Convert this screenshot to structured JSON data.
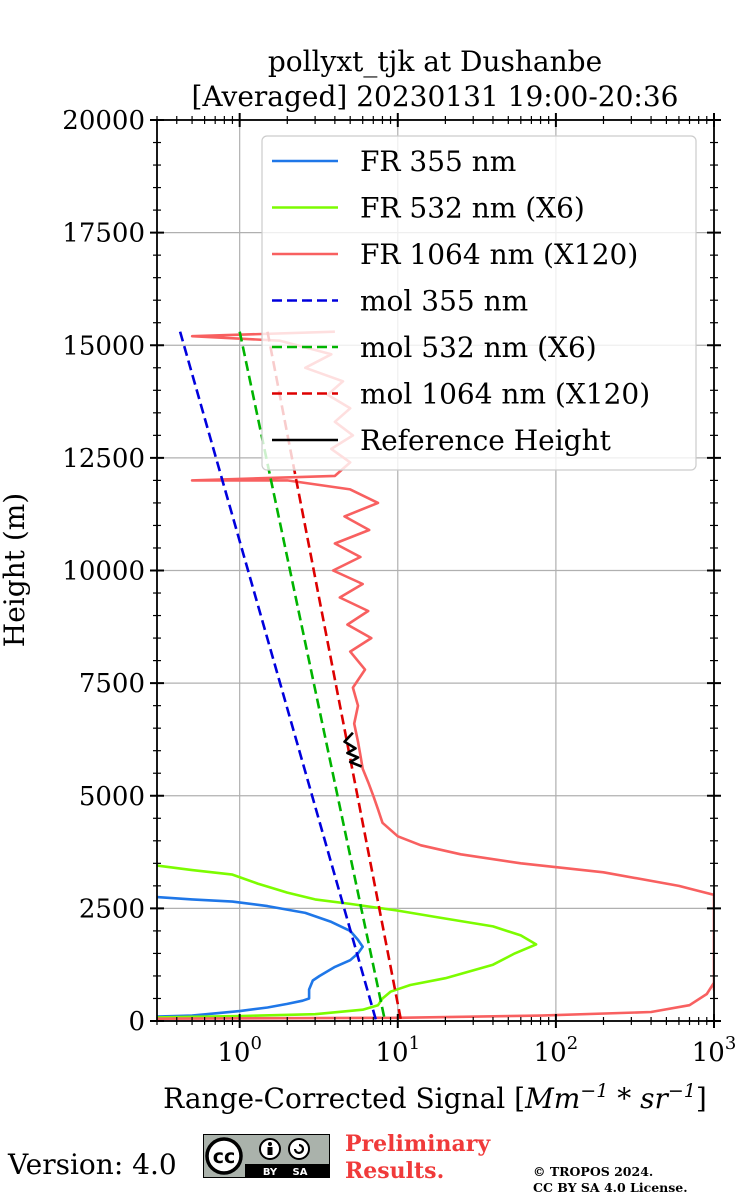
{
  "chart_data": {
    "type": "line",
    "title_line1": "pollyxt_tjk at Dushanbe",
    "title_line2": "[Averaged] 20230131 19:00-20:36",
    "xlabel_text": "Range-Corrected Signal [",
    "xlabel_math": "Mm",
    "xlabel_exp1": "−1",
    "xlabel_star": " * ",
    "xlabel_math2": "sr",
    "xlabel_exp2": "−1",
    "xlabel_end": "]",
    "ylabel": "Height (m)",
    "xscale": "log",
    "xlim": [
      0.3,
      1000
    ],
    "ylim": [
      0,
      20000
    ],
    "grid": true,
    "legend_position": "top-right",
    "yticks": [
      "0",
      "2500",
      "5000",
      "7500",
      "10000",
      "12500",
      "15000",
      "17500",
      "20000"
    ],
    "xticks": [
      {
        "base": "10",
        "exp": "0",
        "value": 1
      },
      {
        "base": "10",
        "exp": "1",
        "value": 10
      },
      {
        "base": "10",
        "exp": "2",
        "value": 100
      },
      {
        "base": "10",
        "exp": "3",
        "value": 1000
      }
    ],
    "series": [
      {
        "name": "FR 355 nm",
        "color": "#1f77e8",
        "style": "solid",
        "points": [
          [
            0.3,
            100
          ],
          [
            0.5,
            120
          ],
          [
            1.0,
            220
          ],
          [
            1.5,
            300
          ],
          [
            2.0,
            380
          ],
          [
            2.5,
            450
          ],
          [
            2.75,
            500
          ],
          [
            2.75,
            700
          ],
          [
            2.9,
            900
          ],
          [
            3.2,
            1000
          ],
          [
            4.0,
            1200
          ],
          [
            5.0,
            1350
          ],
          [
            5.6,
            1500
          ],
          [
            6.0,
            1650
          ],
          [
            5.6,
            1800
          ],
          [
            5.0,
            2000
          ],
          [
            3.8,
            2200
          ],
          [
            2.6,
            2400
          ],
          [
            1.5,
            2550
          ],
          [
            0.9,
            2650
          ],
          [
            0.5,
            2700
          ],
          [
            0.3,
            2750
          ]
        ]
      },
      {
        "name": "FR 532 nm (X6)",
        "color": "#7cfc00",
        "style": "solid",
        "points": [
          [
            0.3,
            80
          ],
          [
            1.0,
            110
          ],
          [
            3.0,
            150
          ],
          [
            6.0,
            250
          ],
          [
            7.5,
            350
          ],
          [
            8.0,
            500
          ],
          [
            9.0,
            650
          ],
          [
            12,
            800
          ],
          [
            20,
            950
          ],
          [
            40,
            1250
          ],
          [
            55,
            1500
          ],
          [
            75,
            1700
          ],
          [
            60,
            1900
          ],
          [
            40,
            2100
          ],
          [
            18,
            2300
          ],
          [
            10,
            2450
          ],
          [
            5,
            2600
          ],
          [
            3,
            2700
          ],
          [
            2,
            2850
          ],
          [
            1.3,
            3050
          ],
          [
            0.9,
            3250
          ],
          [
            0.5,
            3350
          ],
          [
            0.3,
            3450
          ]
        ]
      },
      {
        "name": "FR 1064 nm (X120)",
        "color": "#f86060",
        "style": "solid",
        "points": [
          [
            0.3,
            50
          ],
          [
            10,
            70
          ],
          [
            80,
            120
          ],
          [
            400,
            200
          ],
          [
            700,
            350
          ],
          [
            900,
            600
          ],
          [
            1000,
            850
          ],
          [
            1000,
            700
          ],
          [
            1000,
            2800
          ],
          [
            600,
            3000
          ],
          [
            200,
            3300
          ],
          [
            60,
            3500
          ],
          [
            25,
            3700
          ],
          [
            14,
            3900
          ],
          [
            10,
            4100
          ],
          [
            8,
            4400
          ],
          [
            7.5,
            4700
          ],
          [
            7,
            5000
          ],
          [
            6.5,
            5300
          ],
          [
            6,
            5600
          ],
          [
            5.8,
            5900
          ],
          [
            5.6,
            6200
          ],
          [
            5.3,
            6600
          ],
          [
            5.6,
            7000
          ],
          [
            5.2,
            7400
          ],
          [
            6.2,
            7800
          ],
          [
            5.0,
            8200
          ],
          [
            6.8,
            8500
          ],
          [
            4.8,
            8800
          ],
          [
            6.5,
            9100
          ],
          [
            4.3,
            9400
          ],
          [
            6.0,
            9700
          ],
          [
            3.9,
            10000
          ],
          [
            5.8,
            10300
          ],
          [
            4.0,
            10600
          ],
          [
            6.6,
            10900
          ],
          [
            4.6,
            11200
          ],
          [
            7.5,
            11500
          ],
          [
            5.0,
            11800
          ],
          [
            2.0,
            12000
          ],
          [
            0.5,
            12000
          ],
          [
            4.0,
            12100
          ],
          [
            5.0,
            12400
          ],
          [
            3.8,
            12700
          ],
          [
            5.2,
            13000
          ],
          [
            4.0,
            13300
          ],
          [
            5.0,
            13600
          ],
          [
            3.6,
            13900
          ],
          [
            4.5,
            14200
          ],
          [
            2.6,
            14500
          ],
          [
            3.8,
            14800
          ],
          [
            1.8,
            15100
          ],
          [
            0.5,
            15200
          ],
          [
            4.0,
            15300
          ]
        ]
      },
      {
        "name": "mol 355 nm",
        "color": "#0000dd",
        "style": "dashed",
        "points": [
          [
            0.42,
            15300
          ],
          [
            7.3,
            0
          ]
        ]
      },
      {
        "name": "mol 532 nm (X6)",
        "color": "#00b400",
        "style": "dashed",
        "points": [
          [
            1.0,
            15300
          ],
          [
            8.3,
            0
          ]
        ]
      },
      {
        "name": "mol 1064 nm (X120)",
        "color": "#dd0000",
        "style": "dashed",
        "points": [
          [
            1.5,
            15300
          ],
          [
            10.5,
            0
          ]
        ]
      },
      {
        "name": "Reference Height",
        "color": "#000000",
        "style": "solid",
        "points": [
          [
            5.2,
            6400
          ],
          [
            4.6,
            6200
          ],
          [
            5.4,
            6050
          ],
          [
            4.8,
            5950
          ],
          [
            5.6,
            5850
          ],
          [
            5.0,
            5750
          ],
          [
            5.9,
            5650
          ]
        ]
      }
    ]
  },
  "footer": {
    "version": "Version: 4.0",
    "preliminary_line1": "Preliminary",
    "preliminary_line2": "Results.",
    "copyright_line1": "© TROPOS 2024.",
    "copyright_line2": "CC BY SA 4.0 License.",
    "cc_label": "cc",
    "by_label": "BY",
    "sa_label": "SA"
  }
}
